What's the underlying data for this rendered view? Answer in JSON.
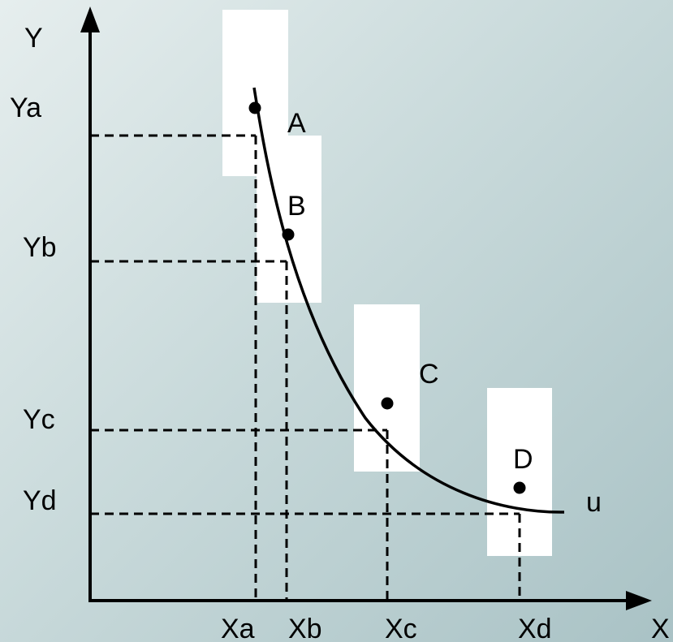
{
  "diagram": {
    "axes": {
      "y_label": "Y",
      "x_label": "X"
    },
    "y_ticks": [
      "Ya",
      "Yb",
      "Yc",
      "Yd"
    ],
    "x_ticks": [
      "Xa",
      "Xb",
      "Xc",
      "Xd"
    ],
    "points": [
      {
        "label": "A"
      },
      {
        "label": "B"
      },
      {
        "label": "C"
      },
      {
        "label": "D"
      }
    ],
    "curve_label": "u",
    "colors": {
      "ink": "#000000",
      "box": "#ffffff",
      "background": "#c9dadb"
    }
  }
}
